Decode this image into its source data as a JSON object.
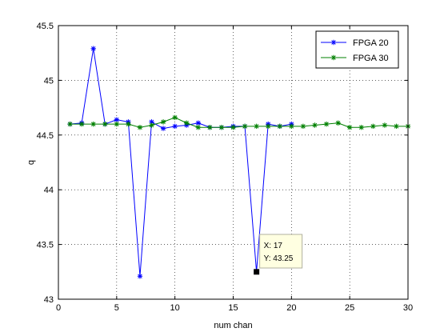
{
  "chart_data": {
    "type": "line",
    "title": "",
    "xlabel": "num chan",
    "ylabel": "q",
    "xlim": [
      0,
      30
    ],
    "ylim": [
      43,
      45.5
    ],
    "xticks": [
      0,
      5,
      10,
      15,
      20,
      25,
      30
    ],
    "yticks": [
      43,
      43.5,
      44,
      44.5,
      45,
      45.5
    ],
    "xtick_labels": [
      "0",
      "5",
      "10",
      "15",
      "20",
      "25",
      "30"
    ],
    "ytick_labels": [
      "43",
      "43.5",
      "44",
      "44.5",
      "45",
      "45.5"
    ],
    "grid": true,
    "legend_position": "top-right",
    "series": [
      {
        "name": "FPGA 20",
        "color": "#0000ff",
        "marker": "asterisk",
        "x": [
          1,
          2,
          3,
          4,
          5,
          6,
          7,
          8,
          9,
          10,
          11,
          12,
          13,
          14,
          15,
          16,
          17,
          18,
          19,
          20
        ],
        "y": [
          44.6,
          44.61,
          45.29,
          44.6,
          44.64,
          44.62,
          43.21,
          44.62,
          44.56,
          44.58,
          44.59,
          44.61,
          44.57,
          44.57,
          44.58,
          44.58,
          43.25,
          44.6,
          44.58,
          44.6
        ]
      },
      {
        "name": "FPGA 30",
        "color": "#008000",
        "marker": "asterisk",
        "x": [
          1,
          2,
          3,
          4,
          5,
          6,
          7,
          8,
          9,
          10,
          11,
          12,
          13,
          14,
          15,
          16,
          17,
          18,
          19,
          20,
          21,
          22,
          23,
          24,
          25,
          26,
          27,
          28,
          29,
          30
        ],
        "y": [
          44.6,
          44.6,
          44.6,
          44.6,
          44.6,
          44.6,
          44.57,
          44.59,
          44.62,
          44.66,
          44.61,
          44.57,
          44.57,
          44.57,
          44.57,
          44.58,
          44.58,
          44.58,
          44.58,
          44.58,
          44.58,
          44.59,
          44.6,
          44.61,
          44.57,
          44.57,
          44.58,
          44.59,
          44.58,
          44.58
        ]
      }
    ],
    "datatip": {
      "x": 17,
      "y": 43.25,
      "x_text": "X: 17",
      "y_text": "Y: 43.25"
    }
  }
}
